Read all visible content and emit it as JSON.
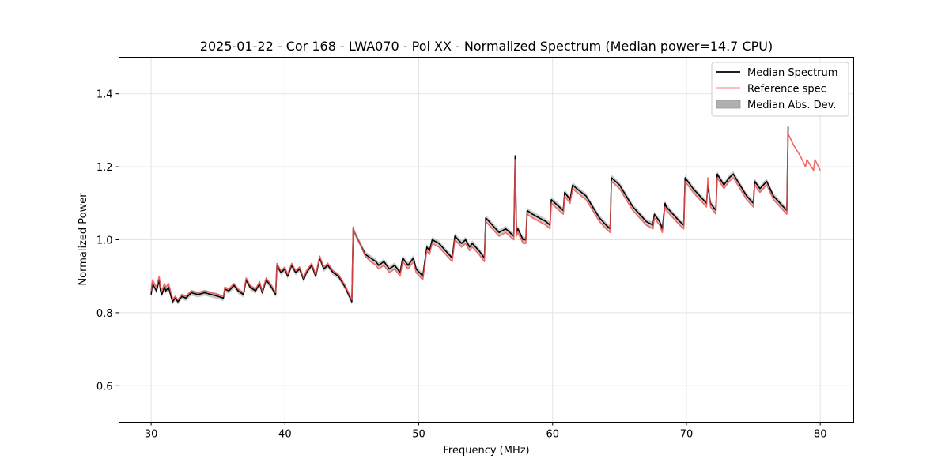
{
  "chart_data": {
    "type": "line",
    "title": "2025-01-22 - Cor 168 - LWA070 - Pol XX - Normalized Spectrum (Median power=14.7 CPU)",
    "xlabel": "Frequency (MHz)",
    "ylabel": "Normalized Power",
    "xlim": [
      27.6,
      82.5
    ],
    "ylim": [
      0.5,
      1.5
    ],
    "xticks": [
      30,
      40,
      50,
      60,
      70,
      80
    ],
    "yticks": [
      0.6,
      0.8,
      1.0,
      1.2,
      1.4
    ],
    "xtick_labels": [
      "30",
      "40",
      "50",
      "60",
      "70",
      "80"
    ],
    "ytick_labels": [
      "0.6",
      "0.8",
      "1.0",
      "1.2",
      "1.4"
    ],
    "grid": true,
    "legend_position": "top-right",
    "legend": [
      {
        "label": "Median Spectrum",
        "kind": "line",
        "color": "#000000"
      },
      {
        "label": "Reference spec",
        "kind": "line",
        "color": "#f05050"
      },
      {
        "label": "Median Abs. Dev.",
        "kind": "band",
        "color": "#b0b0b0"
      }
    ],
    "series": [
      {
        "name": "Median Spectrum",
        "color": "#000000",
        "mad": 0.008,
        "x": [
          30.0,
          30.1,
          30.4,
          30.6,
          30.7,
          30.8,
          31.0,
          31.1,
          31.3,
          31.6,
          31.7,
          31.8,
          32.0,
          32.3,
          32.6,
          33.0,
          33.5,
          34.0,
          34.5,
          35.0,
          35.4,
          35.5,
          35.8,
          36.2,
          36.5,
          36.9,
          37.1,
          37.4,
          37.8,
          38.1,
          38.3,
          38.6,
          39.0,
          39.3,
          39.4,
          39.7,
          40.0,
          40.2,
          40.5,
          40.8,
          41.1,
          41.4,
          41.6,
          42.0,
          42.3,
          42.6,
          42.9,
          43.2,
          43.6,
          44.0,
          44.5,
          45.0,
          45.1,
          45.2,
          45.6,
          46.0,
          46.4,
          46.8,
          47.0,
          47.4,
          47.8,
          48.2,
          48.6,
          48.8,
          49.2,
          49.6,
          49.8,
          50.3,
          50.6,
          50.8,
          51.0,
          51.5,
          52.0,
          52.5,
          52.7,
          53.2,
          53.5,
          53.8,
          54.0,
          54.5,
          54.9,
          55.0,
          55.5,
          56.0,
          56.5,
          57.1,
          57.2,
          57.3,
          57.4,
          57.8,
          58.0,
          58.1,
          58.5,
          59.0,
          59.5,
          59.8,
          59.9,
          60.5,
          60.8,
          60.9,
          61.3,
          61.5,
          61.8,
          62.5,
          63.0,
          63.5,
          64.0,
          64.3,
          64.4,
          65.0,
          65.5,
          66.0,
          66.5,
          67.0,
          67.5,
          67.6,
          68.0,
          68.2,
          68.4,
          68.5,
          69.0,
          69.5,
          69.8,
          69.9,
          70.5,
          71.0,
          71.5,
          71.6,
          71.8,
          72.2,
          72.3,
          72.8,
          73.2,
          73.5,
          74.0,
          74.5,
          75.0,
          75.1,
          75.5,
          76.0,
          76.5,
          77.0,
          77.5,
          77.6
        ],
        "y": [
          0.85,
          0.88,
          0.86,
          0.89,
          0.86,
          0.85,
          0.87,
          0.86,
          0.87,
          0.83,
          0.835,
          0.84,
          0.83,
          0.845,
          0.84,
          0.855,
          0.85,
          0.855,
          0.85,
          0.845,
          0.84,
          0.865,
          0.86,
          0.875,
          0.86,
          0.85,
          0.89,
          0.87,
          0.86,
          0.88,
          0.855,
          0.89,
          0.87,
          0.85,
          0.93,
          0.91,
          0.92,
          0.9,
          0.93,
          0.91,
          0.92,
          0.89,
          0.91,
          0.93,
          0.9,
          0.95,
          0.92,
          0.93,
          0.91,
          0.9,
          0.87,
          0.83,
          1.03,
          1.02,
          0.99,
          0.96,
          0.95,
          0.94,
          0.93,
          0.94,
          0.92,
          0.93,
          0.91,
          0.95,
          0.93,
          0.95,
          0.92,
          0.9,
          0.98,
          0.97,
          1.0,
          0.99,
          0.97,
          0.95,
          1.01,
          0.99,
          1.0,
          0.98,
          0.99,
          0.97,
          0.95,
          1.06,
          1.04,
          1.02,
          1.03,
          1.01,
          1.23,
          1.02,
          1.03,
          1.0,
          1.0,
          1.08,
          1.07,
          1.06,
          1.05,
          1.04,
          1.11,
          1.09,
          1.08,
          1.13,
          1.11,
          1.15,
          1.14,
          1.12,
          1.09,
          1.06,
          1.04,
          1.03,
          1.17,
          1.15,
          1.12,
          1.09,
          1.07,
          1.05,
          1.04,
          1.07,
          1.05,
          1.03,
          1.1,
          1.09,
          1.07,
          1.05,
          1.04,
          1.17,
          1.14,
          1.12,
          1.1,
          1.15,
          1.1,
          1.08,
          1.18,
          1.15,
          1.17,
          1.18,
          1.15,
          1.12,
          1.1,
          1.16,
          1.14,
          1.16,
          1.12,
          1.1,
          1.08,
          1.31
        ]
      },
      {
        "name": "Reference spec",
        "color": "#f05050",
        "x": [
          30.0,
          30.1,
          30.4,
          30.6,
          30.7,
          30.8,
          31.0,
          31.1,
          31.3,
          31.6,
          31.7,
          31.8,
          32.0,
          32.3,
          32.6,
          33.0,
          33.5,
          34.0,
          34.5,
          35.0,
          35.4,
          35.5,
          35.8,
          36.2,
          36.5,
          36.9,
          37.1,
          37.4,
          37.8,
          38.1,
          38.3,
          38.6,
          39.0,
          39.3,
          39.4,
          39.7,
          40.0,
          40.2,
          40.5,
          40.8,
          41.1,
          41.4,
          41.6,
          42.0,
          42.3,
          42.6,
          42.9,
          43.2,
          43.6,
          44.0,
          44.5,
          45.0,
          45.1,
          45.2,
          45.6,
          46.0,
          46.4,
          46.8,
          47.0,
          47.4,
          47.8,
          48.2,
          48.6,
          48.8,
          49.2,
          49.6,
          49.8,
          50.3,
          50.6,
          50.8,
          51.0,
          51.5,
          52.0,
          52.5,
          52.7,
          53.2,
          53.5,
          53.8,
          54.0,
          54.5,
          54.9,
          55.0,
          55.5,
          56.0,
          56.5,
          57.1,
          57.2,
          57.3,
          57.4,
          57.8,
          58.0,
          58.1,
          58.5,
          59.0,
          59.5,
          59.8,
          59.9,
          60.5,
          60.8,
          60.9,
          61.3,
          61.5,
          61.8,
          62.5,
          63.0,
          63.5,
          64.0,
          64.3,
          64.4,
          65.0,
          65.5,
          66.0,
          66.5,
          67.0,
          67.5,
          67.6,
          68.0,
          68.2,
          68.4,
          68.5,
          69.0,
          69.5,
          69.8,
          69.9,
          70.5,
          71.0,
          71.5,
          71.6,
          71.8,
          72.2,
          72.3,
          72.8,
          73.2,
          73.5,
          74.0,
          74.5,
          75.0,
          75.1,
          75.5,
          76.0,
          76.5,
          77.0,
          77.5,
          77.6,
          78.0,
          78.5,
          78.9,
          79.0,
          79.5,
          79.6,
          80.0
        ],
        "y": [
          0.86,
          0.89,
          0.87,
          0.9,
          0.87,
          0.86,
          0.88,
          0.87,
          0.88,
          0.84,
          0.84,
          0.845,
          0.835,
          0.85,
          0.845,
          0.86,
          0.855,
          0.86,
          0.855,
          0.85,
          0.845,
          0.87,
          0.865,
          0.88,
          0.865,
          0.855,
          0.895,
          0.875,
          0.865,
          0.885,
          0.86,
          0.895,
          0.875,
          0.855,
          0.935,
          0.915,
          0.925,
          0.905,
          0.935,
          0.915,
          0.925,
          0.895,
          0.915,
          0.935,
          0.905,
          0.955,
          0.925,
          0.935,
          0.915,
          0.905,
          0.875,
          0.835,
          1.035,
          1.02,
          0.99,
          0.955,
          0.94,
          0.93,
          0.92,
          0.93,
          0.91,
          0.92,
          0.9,
          0.94,
          0.92,
          0.94,
          0.91,
          0.89,
          0.97,
          0.96,
          0.99,
          0.98,
          0.96,
          0.94,
          1.0,
          0.98,
          0.99,
          0.97,
          0.98,
          0.96,
          0.94,
          1.05,
          1.03,
          1.01,
          1.02,
          1.0,
          1.22,
          1.01,
          1.02,
          0.99,
          0.99,
          1.07,
          1.06,
          1.05,
          1.04,
          1.03,
          1.1,
          1.08,
          1.07,
          1.12,
          1.1,
          1.14,
          1.13,
          1.11,
          1.08,
          1.05,
          1.03,
          1.02,
          1.16,
          1.14,
          1.11,
          1.08,
          1.06,
          1.04,
          1.03,
          1.06,
          1.04,
          1.02,
          1.09,
          1.08,
          1.06,
          1.04,
          1.03,
          1.16,
          1.13,
          1.11,
          1.09,
          1.17,
          1.09,
          1.07,
          1.17,
          1.14,
          1.16,
          1.17,
          1.14,
          1.11,
          1.09,
          1.15,
          1.13,
          1.15,
          1.11,
          1.09,
          1.07,
          1.29,
          1.26,
          1.23,
          1.2,
          1.22,
          1.19,
          1.22,
          1.19
        ]
      }
    ]
  }
}
